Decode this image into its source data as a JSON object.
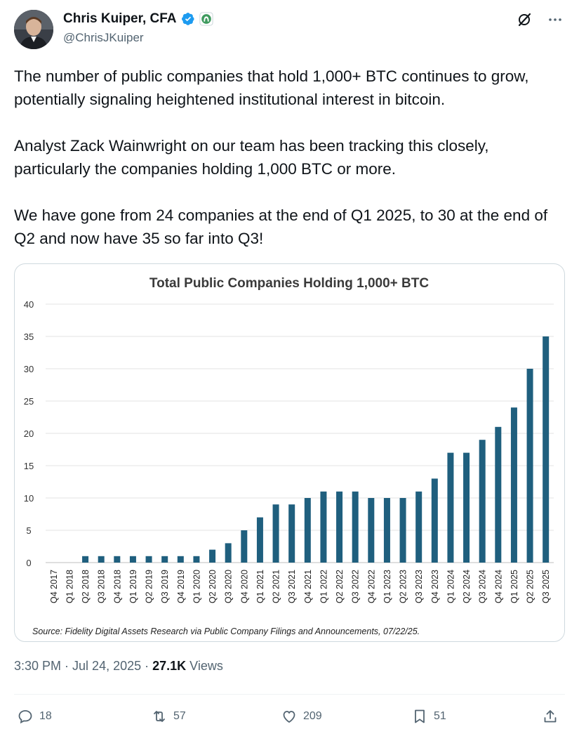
{
  "author": {
    "name": "Chris Kuiper, CFA",
    "handle": "@ChrisJKuiper"
  },
  "icons": {
    "verified": "verified-badge-icon",
    "affiliate": "affiliate-badge-icon",
    "grok": "grok-icon",
    "more": "more-icon",
    "reply": "reply-icon",
    "retweet": "retweet-icon",
    "like": "heart-icon",
    "bookmark": "bookmark-icon",
    "share": "share-icon"
  },
  "tweet": {
    "paragraphs": [
      "The number of public companies that hold 1,000+ BTC continues to grow, potentially signaling heightened institutional interest in bitcoin.",
      "Analyst Zack Wainwright on our team has been tracking this closely, particularly the companies holding 1,000 BTC or more.",
      "We have gone from 24 companies at the end of Q1 2025, to 30 at the end of Q2 and now have 35 so far into Q3!"
    ]
  },
  "chart_data": {
    "type": "bar",
    "title": "Total Public Companies Holding 1,000+ BTC",
    "categories": [
      "Q4 2017",
      "Q1 2018",
      "Q2 2018",
      "Q3 2018",
      "Q4 2018",
      "Q1 2019",
      "Q2 2019",
      "Q3 2019",
      "Q4 2019",
      "Q1 2020",
      "Q2 2020",
      "Q3 2020",
      "Q4 2020",
      "Q1 2021",
      "Q2 2021",
      "Q3 2021",
      "Q4 2021",
      "Q1 2022",
      "Q2 2022",
      "Q3 2022",
      "Q4 2022",
      "Q1 2023",
      "Q2 2023",
      "Q3 2023",
      "Q4 2023",
      "Q1 2024",
      "Q2 2024",
      "Q3 2024",
      "Q4 2024",
      "Q1 2025",
      "Q2 2025",
      "Q3 2025"
    ],
    "values": [
      0,
      0,
      1,
      1,
      1,
      1,
      1,
      1,
      1,
      1,
      2,
      3,
      5,
      7,
      9,
      9,
      10,
      11,
      11,
      11,
      10,
      10,
      10,
      11,
      13,
      17,
      17,
      19,
      21,
      24,
      30,
      35
    ],
    "ylim": [
      0,
      40
    ],
    "yticks": [
      0,
      5,
      10,
      15,
      20,
      25,
      30,
      35,
      40
    ],
    "grid": true,
    "bar_color": "#1f5f7e",
    "source": "Source: Fidelity Digital Assets Research via Public Company Filings and Announcements, 07/22/25."
  },
  "meta": {
    "time": "3:30 PM",
    "sep1": " · ",
    "date": "Jul 24, 2025",
    "sep2": " · ",
    "views_count": "27.1K",
    "views_label": " Views"
  },
  "actions": {
    "replies": "18",
    "retweets": "57",
    "likes": "209",
    "bookmarks": "51"
  }
}
